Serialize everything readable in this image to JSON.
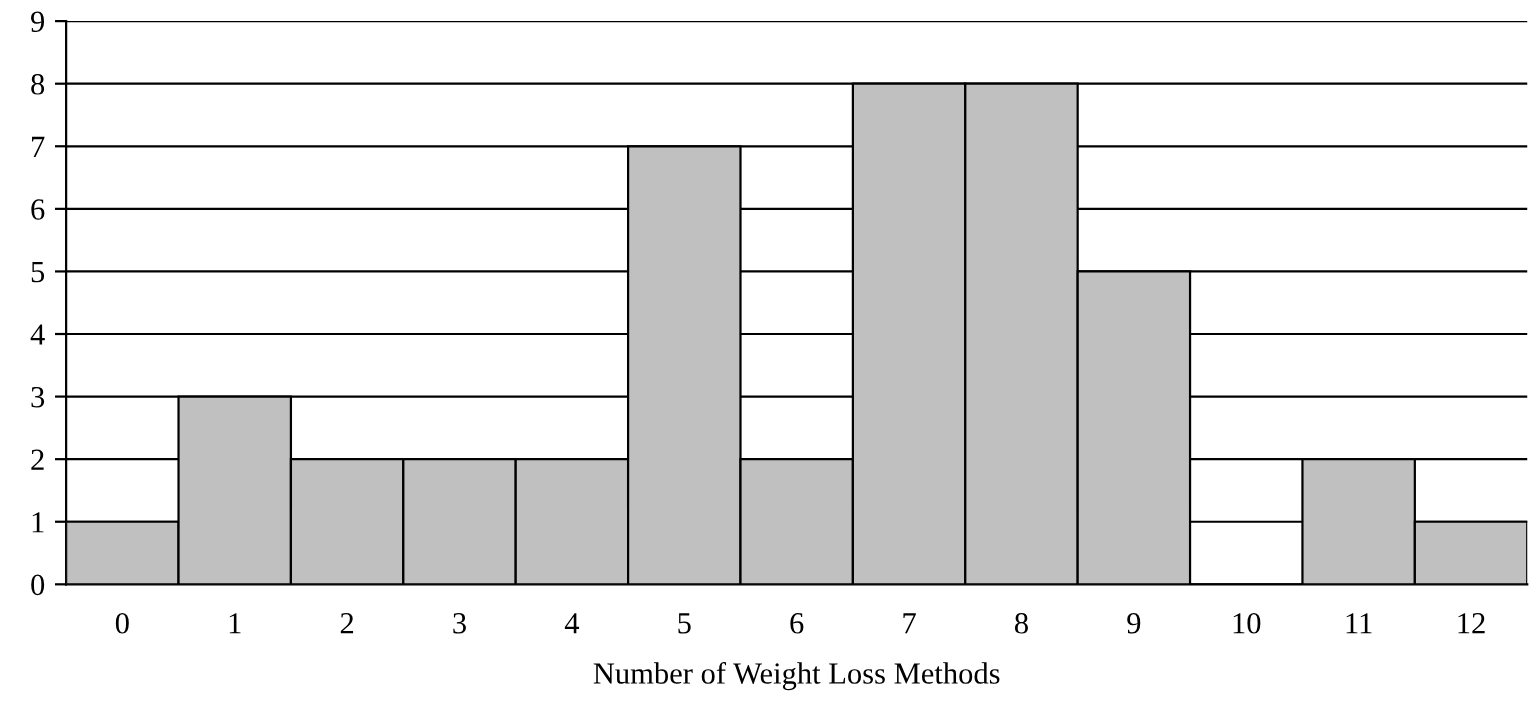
{
  "chart_data": {
    "type": "bar",
    "xlabel": "Number of Weight Loss Methods",
    "categories": [
      "0",
      "1",
      "2",
      "3",
      "4",
      "5",
      "6",
      "7",
      "8",
      "9",
      "10",
      "11",
      "12"
    ],
    "values": [
      1,
      3,
      2,
      2,
      2,
      7,
      2,
      8,
      8,
      5,
      0,
      2,
      1
    ],
    "color": "#c0c0c0",
    "ylim": [
      0,
      9
    ],
    "yticks": [
      0,
      1,
      2,
      3,
      4,
      5,
      6,
      7,
      8,
      9
    ],
    "grid": "y"
  }
}
